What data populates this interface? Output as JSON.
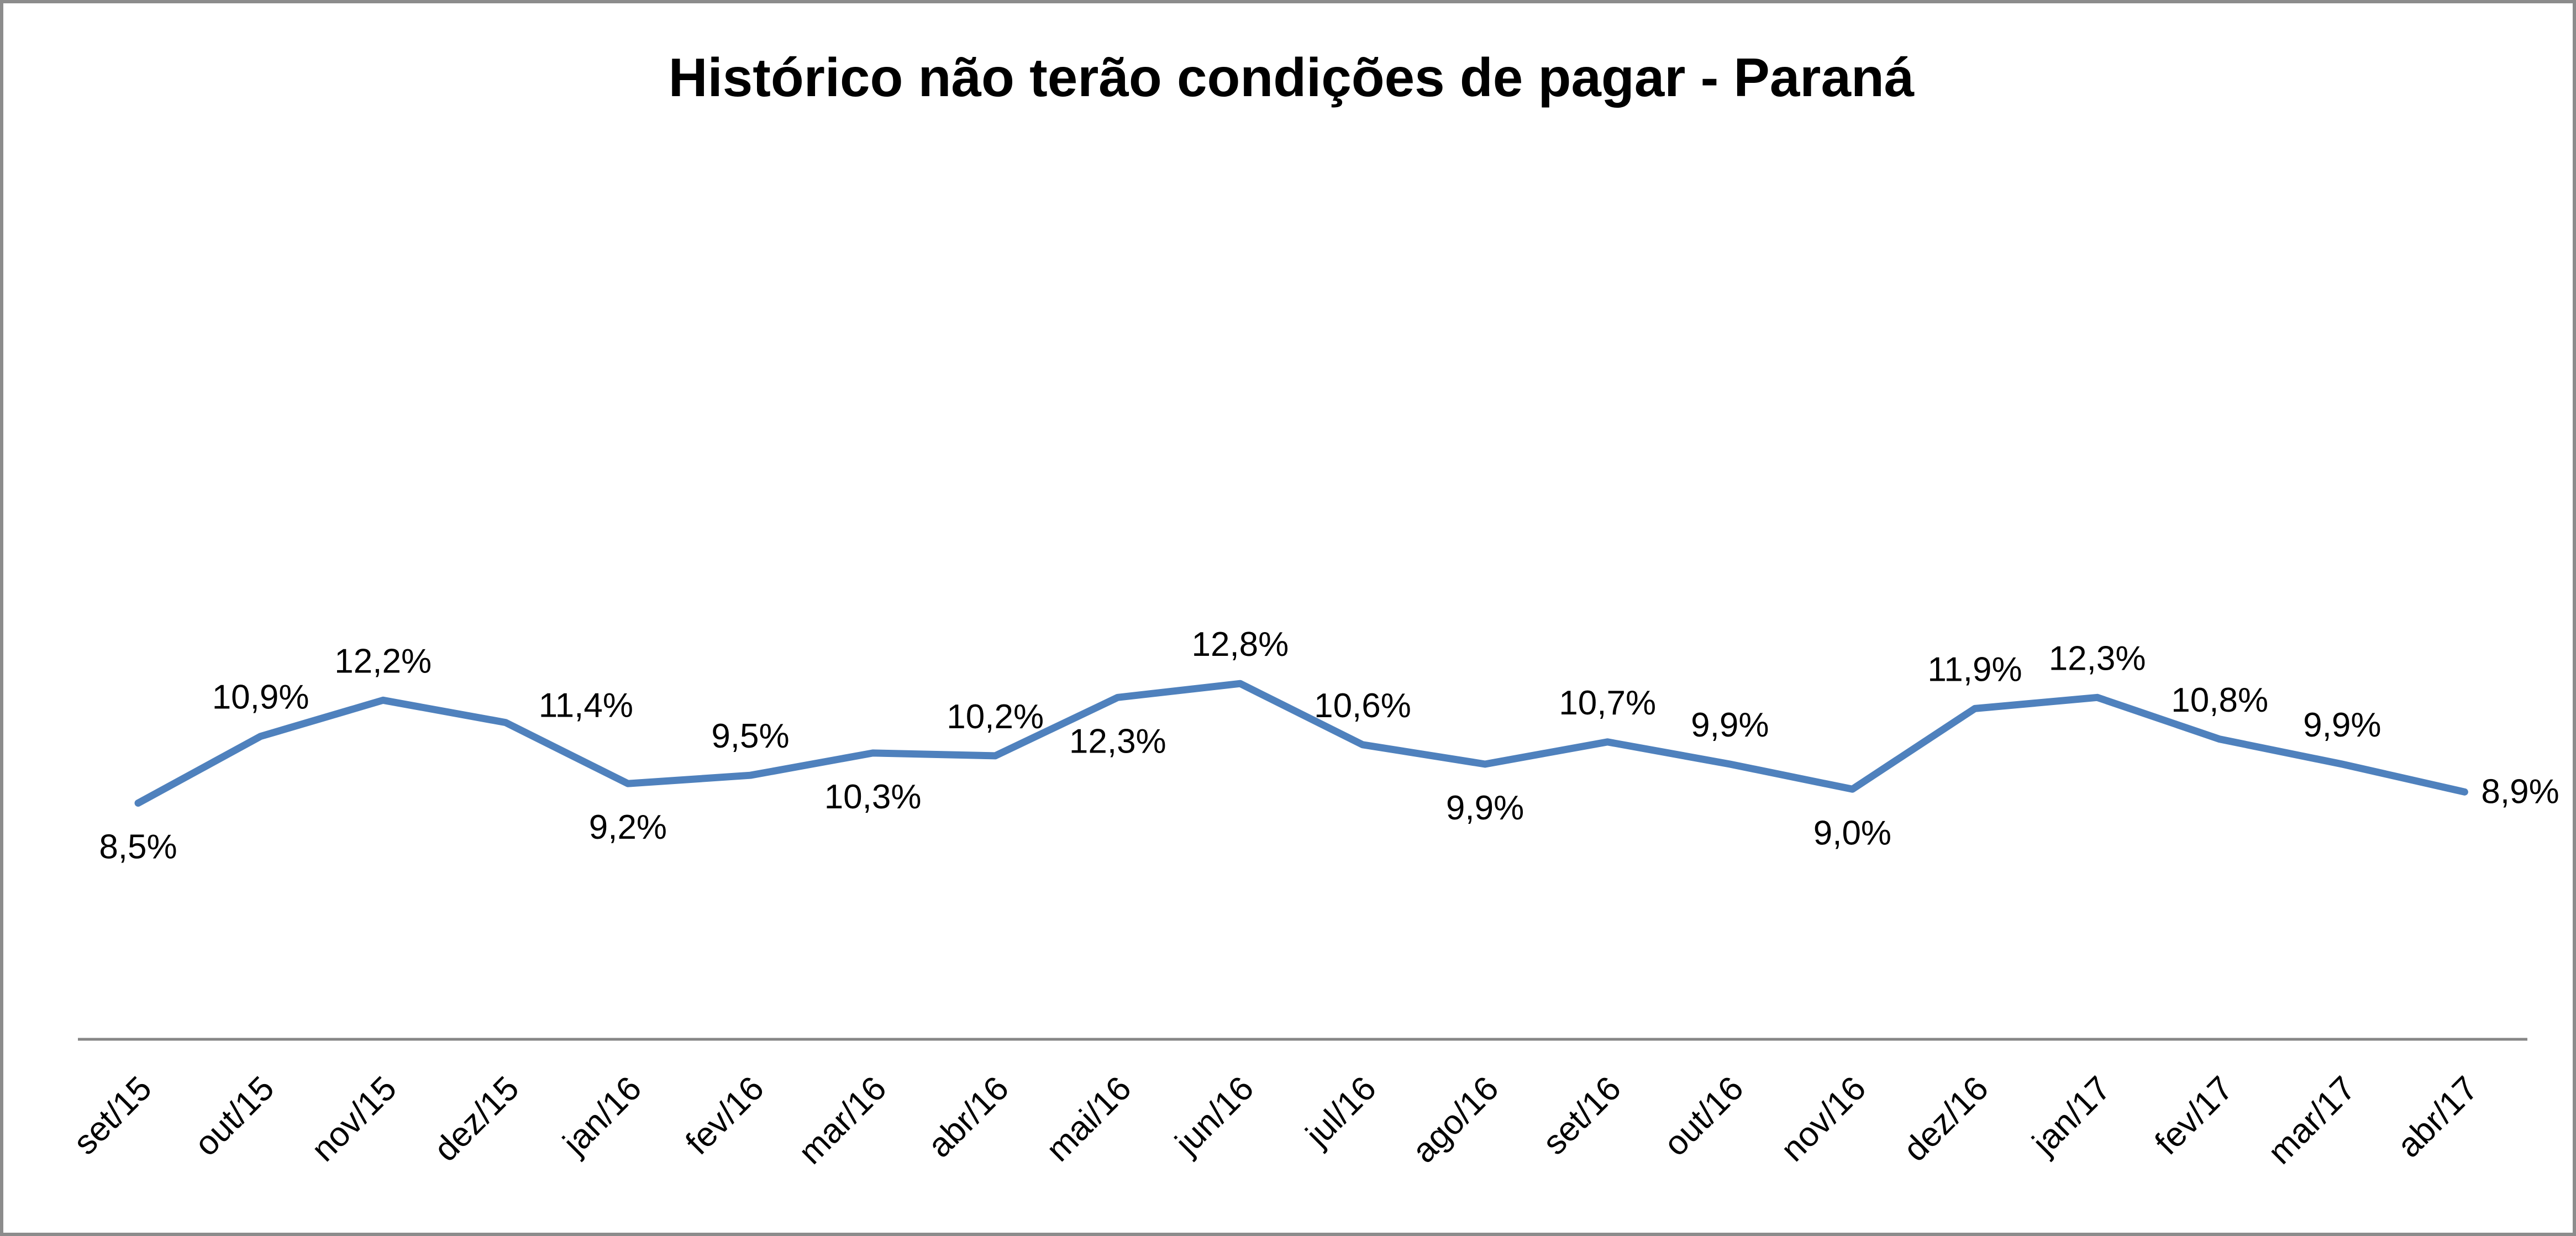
{
  "chart_data": {
    "type": "line",
    "title": "Histórico não terão condições de pagar - Paraná",
    "xlabel": "",
    "ylabel": "",
    "categories": [
      "set/15",
      "out/15",
      "nov/15",
      "dez/15",
      "jan/16",
      "fev/16",
      "mar/16",
      "abr/16",
      "mai/16",
      "jun/16",
      "jul/16",
      "ago/16",
      "set/16",
      "out/16",
      "nov/16",
      "dez/16",
      "jan/17",
      "fev/17",
      "mar/17",
      "abr/17"
    ],
    "series": [
      {
        "values": [
          8.5,
          10.9,
          12.2,
          11.4,
          9.2,
          9.5,
          10.3,
          10.2,
          12.3,
          12.8,
          10.6,
          9.9,
          10.7,
          9.9,
          9.0,
          11.9,
          12.3,
          10.8,
          9.9,
          8.9
        ],
        "labels": [
          "8,5%",
          "10,9%",
          "12,2%",
          "11,4%",
          "9,2%",
          "9,5%",
          "10,3%",
          "10,2%",
          "12,3%",
          "12,8%",
          "10,6%",
          "9,9%",
          "10,7%",
          "9,9%",
          "9,0%",
          "11,9%",
          "12,3%",
          "10,8%",
          "9,9%",
          "8,9%"
        ],
        "color": "#4f81bd"
      }
    ],
    "label_positions": [
      "below",
      "above",
      "above",
      "above-right",
      "below",
      "above",
      "below",
      "above",
      "below",
      "above",
      "above",
      "below",
      "above",
      "above",
      "below",
      "above",
      "above",
      "above",
      "above",
      "right"
    ],
    "ylim": [
      0,
      15
    ],
    "grid": false,
    "legend": "none"
  }
}
